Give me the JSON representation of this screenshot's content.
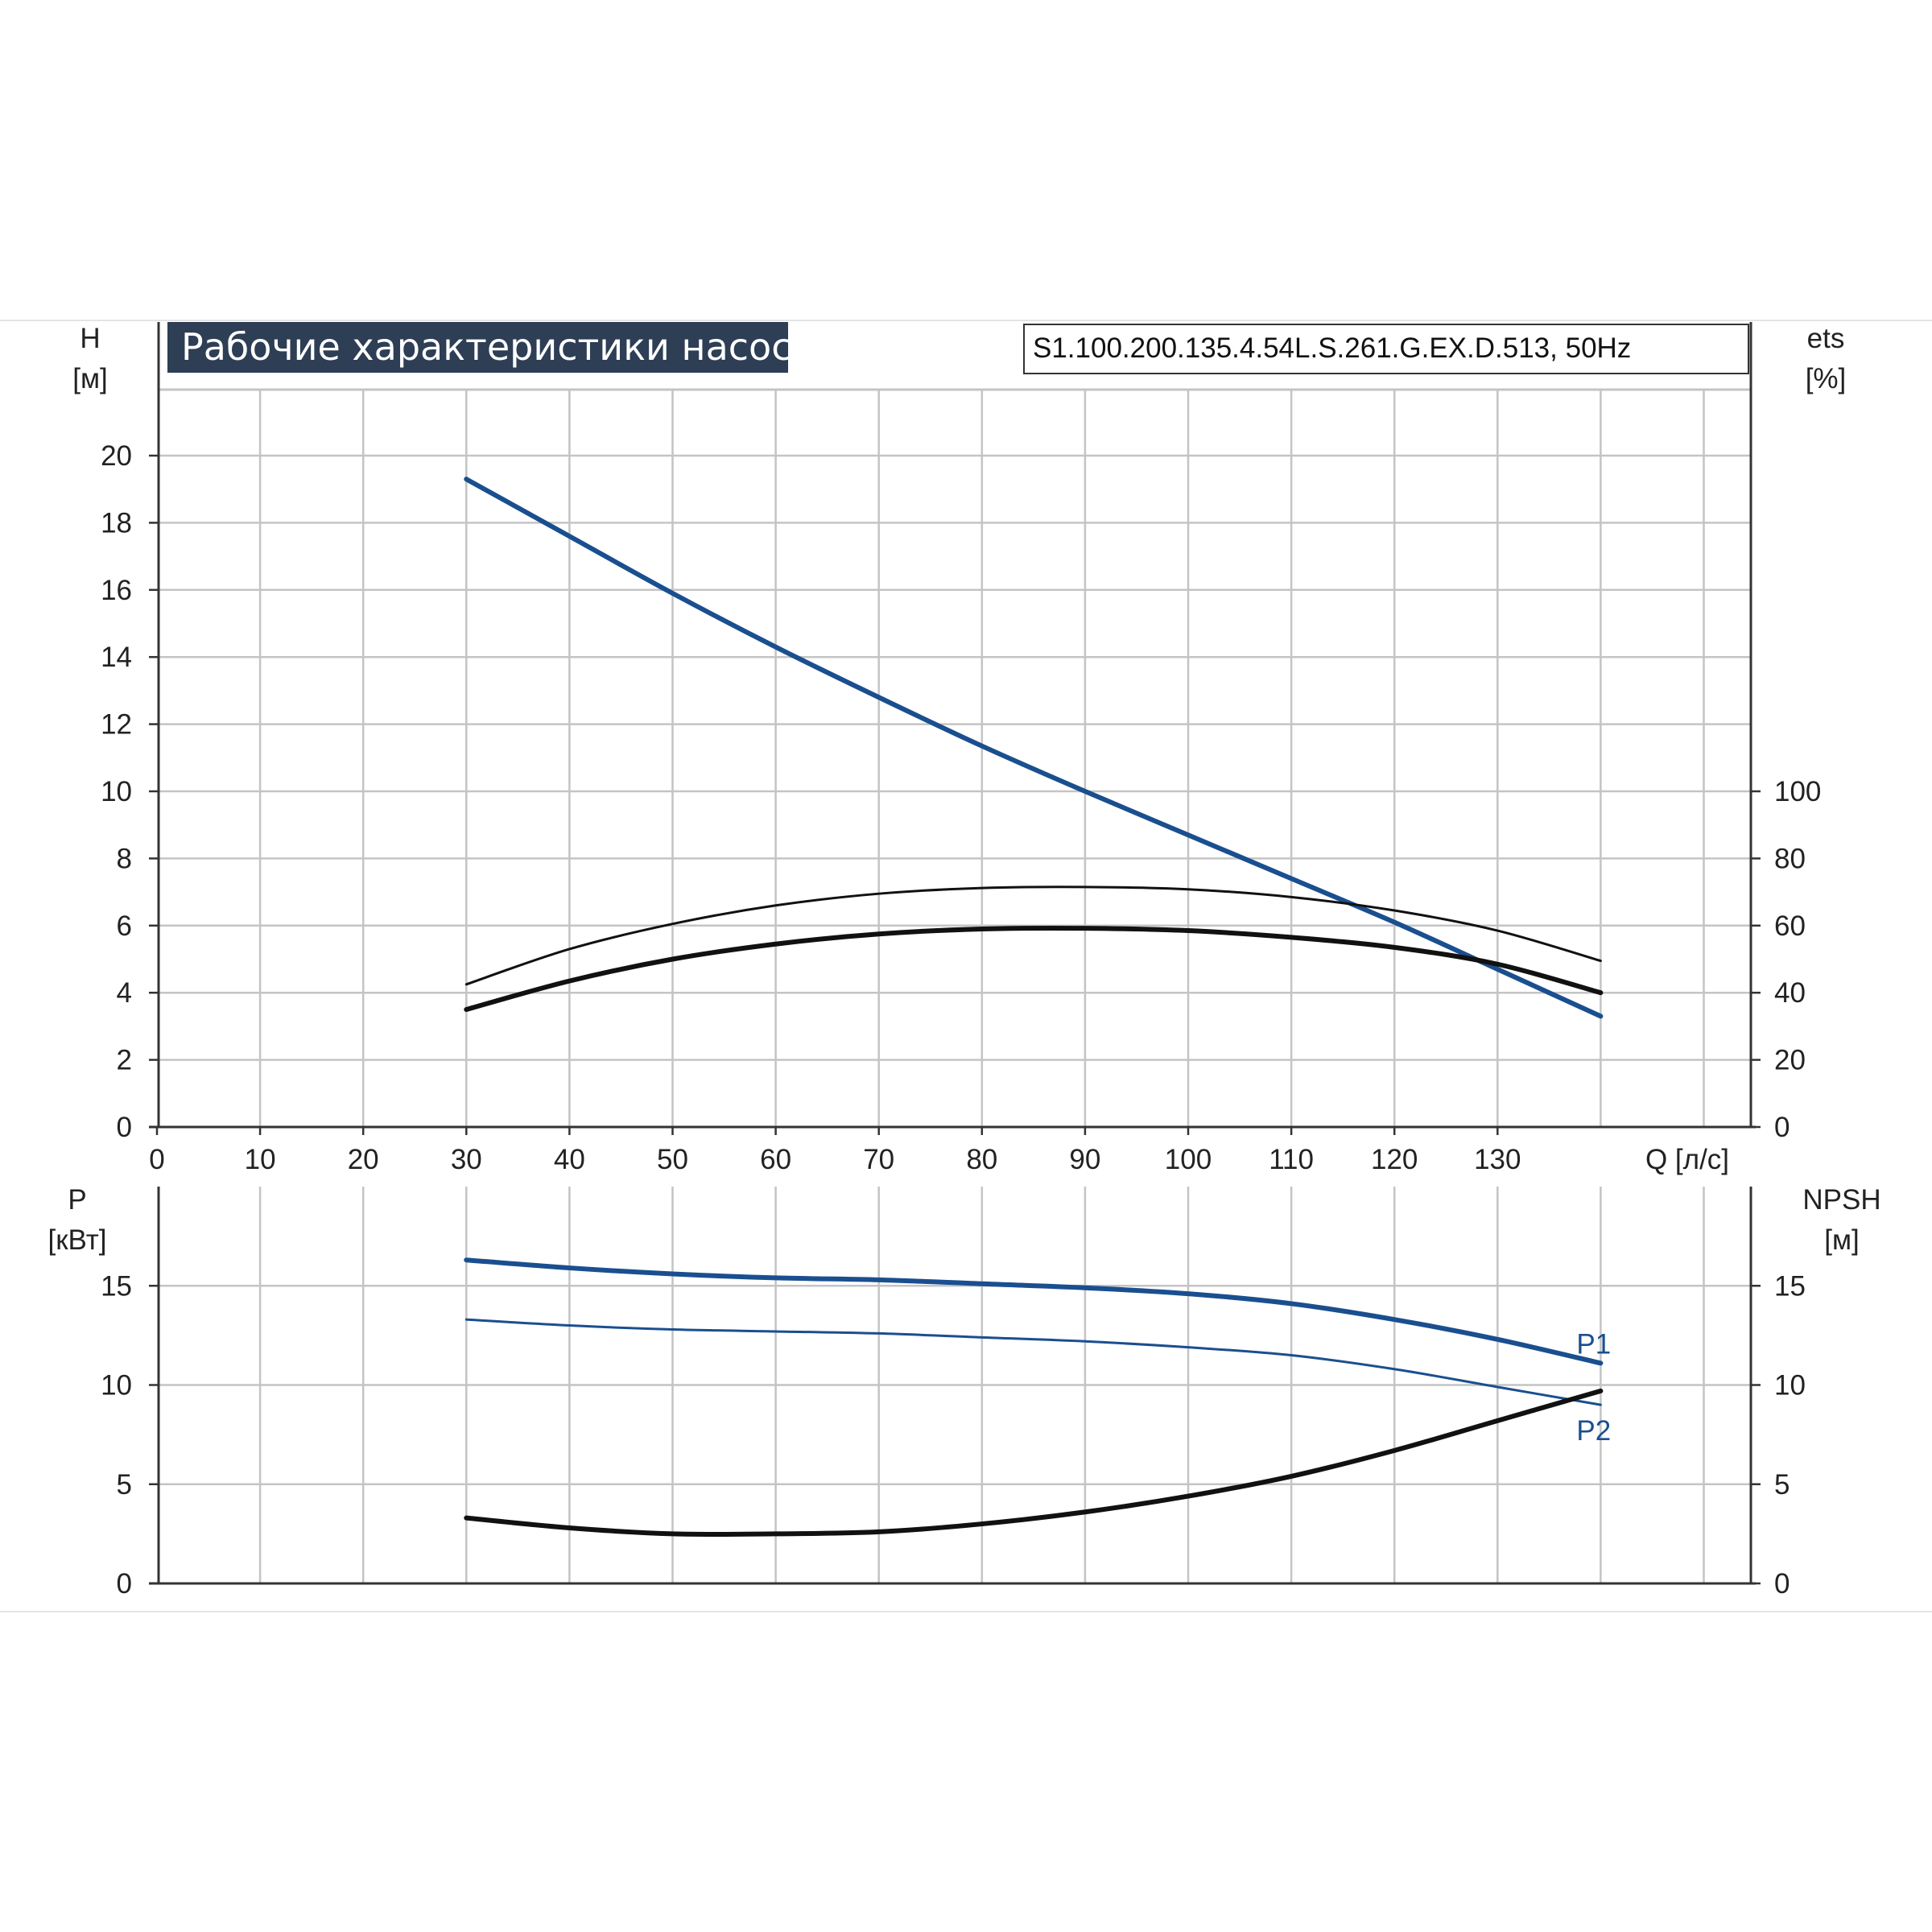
{
  "header": {
    "title": "Рабочие характеристики насоса",
    "model": "S1.100.200.135.4.54L.S.261.G.EX.D.513, 50Hz"
  },
  "colors": {
    "blue": "#1a4f8f",
    "black": "#111111",
    "grid": "#c4c4c4",
    "title_bg": "#2d3e55"
  },
  "chart_data": [
    {
      "type": "line",
      "name": "top",
      "xlabel": "Q [л/с]",
      "ylabel_left": [
        "H",
        "[м]"
      ],
      "ylabel_right": [
        "ets",
        "[%]"
      ],
      "xlim": [
        0,
        154
      ],
      "ylim_left": [
        0,
        22
      ],
      "ylim_right": [
        0,
        100
      ],
      "x_ticks": [
        0,
        10,
        20,
        30,
        40,
        50,
        60,
        70,
        80,
        90,
        100,
        110,
        120,
        130
      ],
      "y_ticks_left": [
        0,
        2,
        4,
        6,
        8,
        10,
        12,
        14,
        16,
        18,
        20
      ],
      "y_ticks_right": [
        0,
        20,
        40,
        60,
        80,
        100
      ],
      "grid": true,
      "series": [
        {
          "axis": "left",
          "color": "#1a4f8f",
          "width": 6,
          "x": [
            30,
            40,
            50,
            60,
            70,
            80,
            90,
            100,
            110,
            120,
            130,
            140
          ],
          "y": [
            19.3,
            17.6,
            15.9,
            14.3,
            12.8,
            11.35,
            10.0,
            8.7,
            7.4,
            6.1,
            4.7,
            3.3
          ]
        },
        {
          "axis": "right",
          "color": "#111111",
          "width": 3,
          "x": [
            30,
            40,
            50,
            60,
            70,
            80,
            90,
            100,
            110,
            120,
            130,
            140
          ],
          "y": [
            42.5,
            53.0,
            60.5,
            66.0,
            69.5,
            71.2,
            71.5,
            70.8,
            68.5,
            64.5,
            58.5,
            49.5
          ]
        },
        {
          "axis": "right",
          "color": "#111111",
          "width": 6,
          "x": [
            30,
            40,
            50,
            60,
            70,
            80,
            90,
            100,
            110,
            120,
            130,
            140
          ],
          "y": [
            35.0,
            43.5,
            50.0,
            54.5,
            57.5,
            59.0,
            59.2,
            58.5,
            56.5,
            53.5,
            48.5,
            40.0
          ]
        }
      ]
    },
    {
      "type": "line",
      "name": "bottom",
      "ylabel_left": [
        "P",
        "[кВт]"
      ],
      "ylabel_right": [
        "NPSH",
        "[м]"
      ],
      "xlim": [
        0,
        154
      ],
      "ylim_left": [
        0,
        20
      ],
      "ylim_right": [
        0,
        20
      ],
      "y_ticks_left": [
        0,
        5,
        10,
        15
      ],
      "y_ticks_right": [
        0,
        5,
        10,
        15
      ],
      "grid": true,
      "series": [
        {
          "name": "P1",
          "axis": "left",
          "color": "#1a4f8f",
          "width": 6,
          "x": [
            30,
            40,
            50,
            60,
            70,
            80,
            90,
            100,
            110,
            120,
            130,
            140
          ],
          "y": [
            16.3,
            15.9,
            15.6,
            15.4,
            15.3,
            15.1,
            14.9,
            14.6,
            14.1,
            13.3,
            12.3,
            11.1
          ]
        },
        {
          "name": "P2",
          "axis": "left",
          "color": "#1a4f8f",
          "width": 3,
          "x": [
            30,
            40,
            50,
            60,
            70,
            80,
            90,
            100,
            110,
            120,
            130,
            140
          ],
          "y": [
            13.3,
            13.0,
            12.8,
            12.7,
            12.6,
            12.4,
            12.2,
            11.9,
            11.5,
            10.8,
            9.9,
            9.0
          ]
        },
        {
          "axis": "right",
          "color": "#111111",
          "width": 6,
          "x": [
            30,
            40,
            50,
            60,
            70,
            80,
            90,
            100,
            110,
            120,
            130,
            140
          ],
          "y": [
            3.3,
            2.8,
            2.5,
            2.5,
            2.6,
            3.0,
            3.6,
            4.4,
            5.4,
            6.7,
            8.2,
            9.7
          ]
        }
      ]
    }
  ]
}
